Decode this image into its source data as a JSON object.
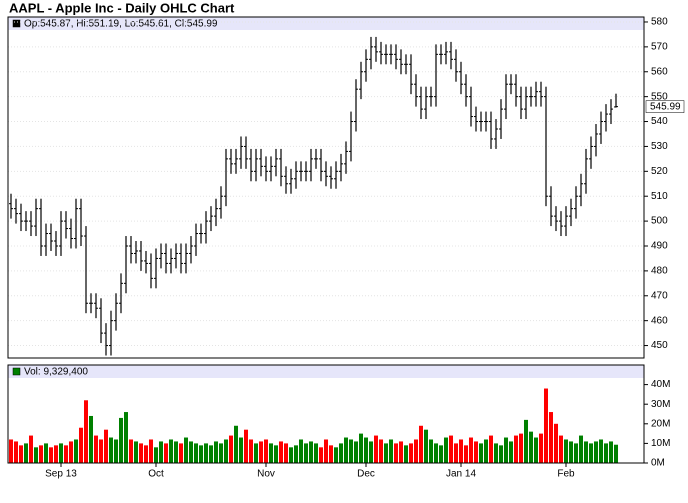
{
  "chart_data": [
    {
      "type": "ohlc",
      "title": "AAPL - Apple Inc - Daily OHLC Chart",
      "legend_text": "Op:545.87, Hi:551.19, Lo:545.61, Cl:545.99",
      "color": "#000000",
      "legend_color": "#000000",
      "header_color": "#e6e6fa",
      "grid": true,
      "open": [
        507,
        505,
        503,
        500,
        500,
        498,
        505,
        490,
        495,
        492,
        490,
        500,
        497,
        493,
        505,
        494,
        467,
        467,
        465,
        455,
        450,
        460,
        467,
        475,
        490,
        487,
        488,
        484,
        483,
        477,
        485,
        487,
        483,
        485,
        487,
        483,
        487,
        490,
        495,
        495,
        500,
        502,
        505,
        510,
        525,
        523,
        525,
        530,
        525,
        520,
        525,
        522,
        520,
        522,
        525,
        518,
        515,
        517,
        520,
        520,
        520,
        525,
        525,
        520,
        518,
        517,
        520,
        523,
        528,
        540,
        553,
        560,
        565,
        570,
        568,
        567,
        567,
        567,
        565,
        563,
        563,
        555,
        550,
        545,
        550,
        550,
        567,
        567,
        568,
        565,
        560,
        555,
        550,
        542,
        540,
        540,
        540,
        533,
        537,
        545,
        555,
        555,
        550,
        545,
        550,
        550,
        552,
        550,
        510,
        502,
        500,
        498,
        502,
        505,
        510,
        515,
        525,
        530,
        535,
        540,
        543,
        545.87
      ],
      "high": [
        511,
        509,
        507,
        504,
        504,
        509,
        509,
        499,
        499,
        496,
        504,
        504,
        501,
        509,
        509,
        498,
        471,
        471,
        469,
        459,
        464,
        471,
        479,
        494,
        494,
        492,
        492,
        488,
        487,
        489,
        491,
        491,
        489,
        491,
        491,
        491,
        494,
        499,
        499,
        504,
        506,
        509,
        514,
        529,
        529,
        529,
        534,
        534,
        529,
        529,
        529,
        526,
        526,
        529,
        529,
        522,
        521,
        524,
        524,
        524,
        529,
        529,
        529,
        524,
        522,
        524,
        527,
        532,
        544,
        557,
        564,
        569,
        574,
        574,
        572,
        571,
        571,
        571,
        569,
        567,
        567,
        559,
        554,
        554,
        554,
        571,
        571,
        572,
        572,
        569,
        564,
        559,
        554,
        546,
        544,
        544,
        544,
        541,
        549,
        559,
        559,
        559,
        554,
        554,
        554,
        556,
        556,
        554,
        514,
        506,
        504,
        506,
        509,
        514,
        519,
        529,
        534,
        539,
        544,
        547,
        549,
        551.19
      ],
      "low": [
        501,
        499,
        496,
        496,
        494,
        494,
        486,
        486,
        488,
        486,
        486,
        493,
        489,
        489,
        490,
        463,
        463,
        461,
        451,
        446,
        446,
        456,
        463,
        471,
        483,
        483,
        480,
        479,
        473,
        473,
        481,
        479,
        479,
        481,
        479,
        479,
        483,
        486,
        491,
        491,
        496,
        498,
        501,
        506,
        519,
        519,
        521,
        521,
        516,
        516,
        518,
        516,
        516,
        518,
        514,
        511,
        511,
        513,
        516,
        516,
        516,
        521,
        516,
        514,
        513,
        513,
        516,
        519,
        524,
        536,
        549,
        556,
        561,
        564,
        563,
        563,
        563,
        561,
        559,
        559,
        551,
        546,
        541,
        541,
        546,
        546,
        563,
        563,
        561,
        556,
        551,
        546,
        538,
        536,
        536,
        536,
        529,
        529,
        533,
        541,
        551,
        546,
        541,
        541,
        546,
        546,
        546,
        506,
        498,
        496,
        494,
        494,
        498,
        501,
        506,
        511,
        521,
        526,
        531,
        536,
        539,
        545.61
      ],
      "close": [
        505,
        503,
        500,
        500,
        498,
        505,
        490,
        495,
        492,
        490,
        500,
        497,
        493,
        505,
        494,
        467,
        467,
        465,
        455,
        450,
        460,
        467,
        475,
        490,
        487,
        488,
        484,
        483,
        477,
        485,
        487,
        483,
        485,
        487,
        483,
        487,
        490,
        495,
        495,
        500,
        502,
        505,
        510,
        525,
        523,
        525,
        530,
        525,
        520,
        525,
        522,
        520,
        522,
        525,
        518,
        515,
        517,
        520,
        520,
        520,
        525,
        525,
        520,
        518,
        517,
        520,
        523,
        528,
        540,
        553,
        560,
        565,
        570,
        568,
        567,
        567,
        567,
        565,
        563,
        563,
        555,
        550,
        545,
        550,
        550,
        567,
        567,
        568,
        565,
        560,
        555,
        550,
        542,
        540,
        540,
        540,
        533,
        537,
        545,
        555,
        555,
        550,
        545,
        550,
        550,
        552,
        550,
        510,
        502,
        500,
        498,
        502,
        505,
        510,
        515,
        525,
        530,
        535,
        540,
        543,
        545,
        545.99
      ],
      "ylim": [
        445,
        582
      ],
      "yticks": [
        450,
        460,
        470,
        480,
        490,
        500,
        510,
        520,
        530,
        540,
        550,
        560,
        570,
        580
      ]
    },
    {
      "type": "bar",
      "legend_text": "Vol: 9,329,400",
      "up_color": "#008000",
      "down_color": "#ff0000",
      "legend_color": "#008000",
      "header_color": "#e6e6fa",
      "categories": [
        null,
        null,
        null,
        null,
        null,
        null,
        null,
        null,
        null,
        null,
        "Sep 13",
        null,
        null,
        null,
        null,
        null,
        null,
        null,
        null,
        null,
        null,
        null,
        null,
        null,
        null,
        null,
        null,
        null,
        null,
        "Oct",
        null,
        null,
        null,
        null,
        null,
        null,
        null,
        null,
        null,
        null,
        null,
        null,
        null,
        null,
        null,
        null,
        null,
        null,
        null,
        null,
        null,
        "Nov",
        null,
        null,
        null,
        null,
        null,
        null,
        null,
        null,
        null,
        null,
        null,
        null,
        null,
        null,
        null,
        null,
        null,
        null,
        null,
        "Dec",
        null,
        null,
        null,
        null,
        null,
        null,
        null,
        null,
        null,
        null,
        null,
        null,
        null,
        null,
        null,
        null,
        null,
        null,
        "Jan 14",
        null,
        null,
        null,
        null,
        null,
        null,
        null,
        null,
        null,
        null,
        null,
        null,
        null,
        null,
        null,
        null,
        null,
        null,
        null,
        null,
        "Feb",
        null,
        null,
        null,
        null,
        null,
        null,
        null,
        null,
        null,
        null
      ],
      "values": [
        12000000,
        11000000,
        9000000,
        10000000,
        14000000,
        8000000,
        9000000,
        10000000,
        8000000,
        9000000,
        10000000,
        9000000,
        11000000,
        12000000,
        18000000,
        32000000,
        24000000,
        14000000,
        12000000,
        17000000,
        13000000,
        12000000,
        23000000,
        26000000,
        12000000,
        11000000,
        10000000,
        9000000,
        12000000,
        8000000,
        11000000,
        10000000,
        12000000,
        11000000,
        10000000,
        13000000,
        11000000,
        10000000,
        9000000,
        10000000,
        9000000,
        11000000,
        10000000,
        12000000,
        14000000,
        19000000,
        13000000,
        17000000,
        12000000,
        10000000,
        11000000,
        12000000,
        10000000,
        9000000,
        11000000,
        10000000,
        8000000,
        9000000,
        12000000,
        10000000,
        11000000,
        10000000,
        8000000,
        12000000,
        9000000,
        8000000,
        10000000,
        13000000,
        12000000,
        11000000,
        15000000,
        13000000,
        11000000,
        14000000,
        12000000,
        10000000,
        12000000,
        10000000,
        11000000,
        9000000,
        10000000,
        12000000,
        19000000,
        17000000,
        12000000,
        10000000,
        9000000,
        13000000,
        14000000,
        10000000,
        12000000,
        9000000,
        13000000,
        11000000,
        10000000,
        12000000,
        14000000,
        10000000,
        9000000,
        13000000,
        11000000,
        14000000,
        15000000,
        22000000,
        16000000,
        13000000,
        15000000,
        38000000,
        26000000,
        20000000,
        14000000,
        12000000,
        11000000,
        10000000,
        14000000,
        11000000,
        10000000,
        11000000,
        12000000,
        10000000,
        11000000,
        9329400
      ],
      "ylim": [
        0,
        50000000
      ],
      "yticks": [
        {
          "value": 0,
          "label": "0M"
        },
        {
          "value": 10000000,
          "label": "10M"
        },
        {
          "value": 20000000,
          "label": "20M"
        },
        {
          "value": 30000000,
          "label": "30M"
        },
        {
          "value": 40000000,
          "label": "40M"
        }
      ]
    }
  ]
}
